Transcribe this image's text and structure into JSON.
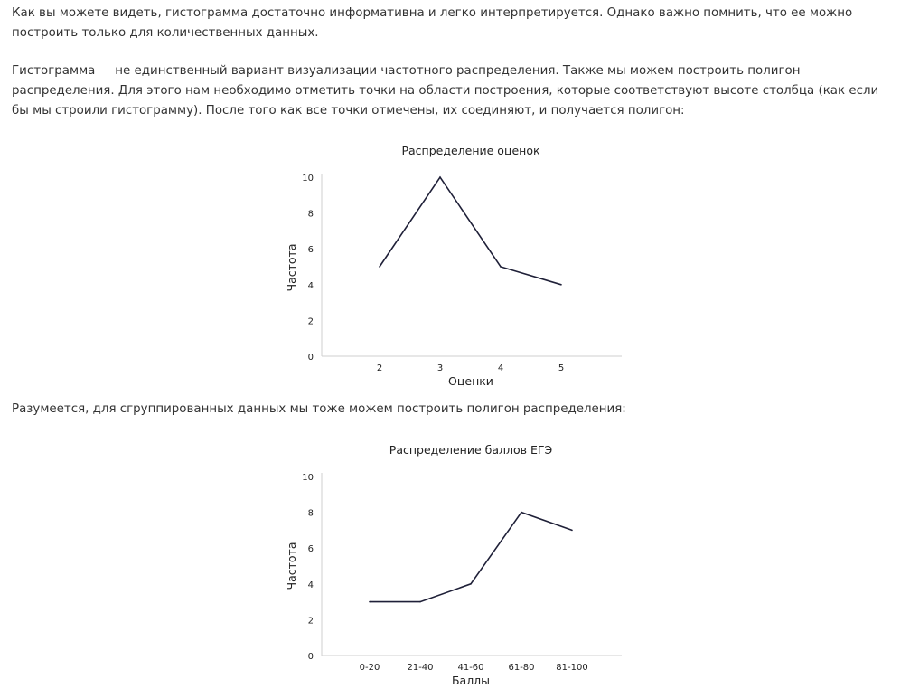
{
  "article": {
    "paragraphs": [
      "Как вы можете видеть, гистограмма достаточно информативна и легко интерпретируется. Однако важно помнить, что ее можно построить только для количественных данных.",
      "Гистограмма — не единственный вариант визуализации частотного распределения. Также мы можем построить полигон распределения. Для этого нам необходимо отметить точки на области построения, которые соответствуют высоте столбца (как если бы мы строили гистограмму). После того как все точки отмечены, их соединяют, и получается полигон:",
      "Разумеется, для сгруппированных данных мы тоже можем построить полигон распределения:"
    ]
  },
  "chart_data": [
    {
      "type": "line",
      "title": "Распределение оценок",
      "xlabel": "Оценки",
      "ylabel": "Частота",
      "categories": [
        "2",
        "3",
        "4",
        "5"
      ],
      "series": [
        {
          "values": [
            5,
            10,
            5,
            4
          ]
        }
      ],
      "yticks": [
        "0",
        "2",
        "4",
        "6",
        "8",
        "10"
      ],
      "ylim": [
        0,
        10
      ],
      "grid": false,
      "line_color": "#1f2038"
    },
    {
      "type": "line",
      "title": "Распределение баллов ЕГЭ",
      "xlabel": "Баллы",
      "ylabel": "Частота",
      "categories": [
        "0-20",
        "21-40",
        "41-60",
        "61-80",
        "81-100"
      ],
      "series": [
        {
          "values": [
            3,
            3,
            4,
            8,
            7
          ]
        }
      ],
      "yticks": [
        "0",
        "2",
        "4",
        "6",
        "8",
        "10"
      ],
      "ylim": [
        0,
        10
      ],
      "grid": false,
      "line_color": "#1f2038"
    }
  ]
}
